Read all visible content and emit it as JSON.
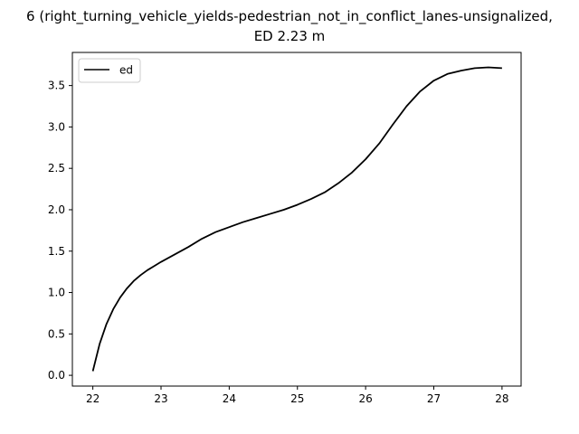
{
  "chart_data": {
    "type": "line",
    "title_line1": "6 (right_turning_vehicle_yields-pedestrian_not_in_conflict_lanes-unsignalized,",
    "title_line2": "ED 2.23 m",
    "xlabel": "",
    "ylabel": "",
    "xlim": [
      21.7,
      28.28
    ],
    "ylim": [
      -0.13,
      3.9
    ],
    "x_ticks": [
      22,
      23,
      24,
      25,
      26,
      27,
      28
    ],
    "x_tick_labels": [
      "22",
      "23",
      "24",
      "25",
      "26",
      "27",
      "28"
    ],
    "y_ticks": [
      0.0,
      0.5,
      1.0,
      1.5,
      2.0,
      2.5,
      3.0,
      3.5
    ],
    "y_tick_labels": [
      "0.0",
      "0.5",
      "1.0",
      "1.5",
      "2.0",
      "2.5",
      "3.0",
      "3.5"
    ],
    "grid": false,
    "legend_position": "top-left",
    "series": [
      {
        "name": "ed",
        "color": "#000000",
        "x": [
          22.0,
          22.1,
          22.2,
          22.3,
          22.4,
          22.5,
          22.6,
          22.7,
          22.8,
          22.9,
          23.0,
          23.2,
          23.4,
          23.6,
          23.8,
          24.0,
          24.2,
          24.4,
          24.6,
          24.8,
          25.0,
          25.2,
          25.4,
          25.6,
          25.8,
          26.0,
          26.2,
          26.4,
          26.6,
          26.8,
          27.0,
          27.2,
          27.4,
          27.6,
          27.8,
          28.0
        ],
        "y": [
          0.05,
          0.38,
          0.62,
          0.8,
          0.94,
          1.05,
          1.14,
          1.21,
          1.27,
          1.32,
          1.37,
          1.46,
          1.55,
          1.65,
          1.73,
          1.79,
          1.85,
          1.9,
          1.95,
          2.0,
          2.06,
          2.13,
          2.21,
          2.32,
          2.45,
          2.61,
          2.8,
          3.03,
          3.25,
          3.43,
          3.56,
          3.64,
          3.68,
          3.71,
          3.72,
          3.71
        ]
      }
    ]
  }
}
